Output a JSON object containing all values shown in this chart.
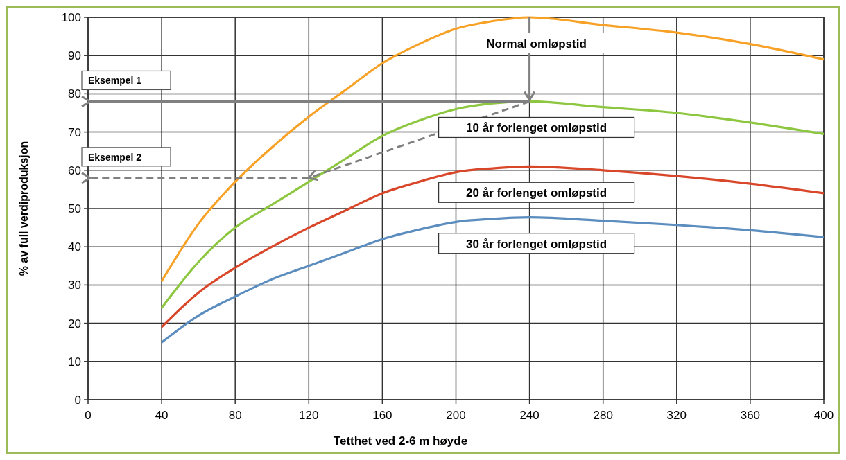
{
  "chart_data": {
    "type": "line",
    "xlabel": "Tetthet ved 2-6 m høyde",
    "ylabel": "% av full verdiproduksjon",
    "x": [
      40,
      60,
      80,
      100,
      120,
      140,
      160,
      180,
      200,
      220,
      240,
      280,
      320,
      360,
      400
    ],
    "series": [
      {
        "name": "Normal omløpstid",
        "color": "#f7a127",
        "values": [
          31,
          46,
          57,
          66,
          74,
          81,
          88,
          93,
          97,
          99,
          100,
          98,
          96,
          93,
          89
        ]
      },
      {
        "name": "10 år forlenget omløpstid",
        "color": "#8dc63f",
        "values": [
          24,
          36,
          45,
          51,
          57,
          63,
          69,
          73,
          76,
          77.5,
          78,
          76.5,
          75,
          72.5,
          69.5
        ]
      },
      {
        "name": "20 år forlenget omløpstid",
        "color": "#d9472b",
        "values": [
          19,
          28,
          34.5,
          40,
          45,
          49.5,
          54,
          57,
          59.5,
          60.5,
          61,
          60,
          58.5,
          56.5,
          54
        ]
      },
      {
        "name": "30 år forlenget omløpstid",
        "color": "#5b8dbf",
        "values": [
          15,
          22,
          27,
          31.5,
          35,
          38.5,
          42,
          44.5,
          46.5,
          47.3,
          47.7,
          46.8,
          45.7,
          44.3,
          42.5
        ]
      }
    ],
    "ref_lines": [
      {
        "axis": "y",
        "value": 78,
        "label": "Eksempel 1",
        "color": "#808080",
        "line_style": "solid"
      },
      {
        "axis": "y",
        "value": 58,
        "label": "Eksempel 2",
        "color": "#808080",
        "line_style": "dashed"
      }
    ],
    "xlim": [
      0,
      400
    ],
    "xticks": [
      0,
      40,
      80,
      120,
      160,
      200,
      240,
      280,
      320,
      360,
      400
    ],
    "ylim": [
      0,
      100
    ],
    "yticks": [
      0,
      10,
      20,
      30,
      40,
      50,
      60,
      70,
      80,
      90,
      100
    ],
    "grid": true,
    "legend": false,
    "line_style": "solid",
    "marker": "none"
  }
}
